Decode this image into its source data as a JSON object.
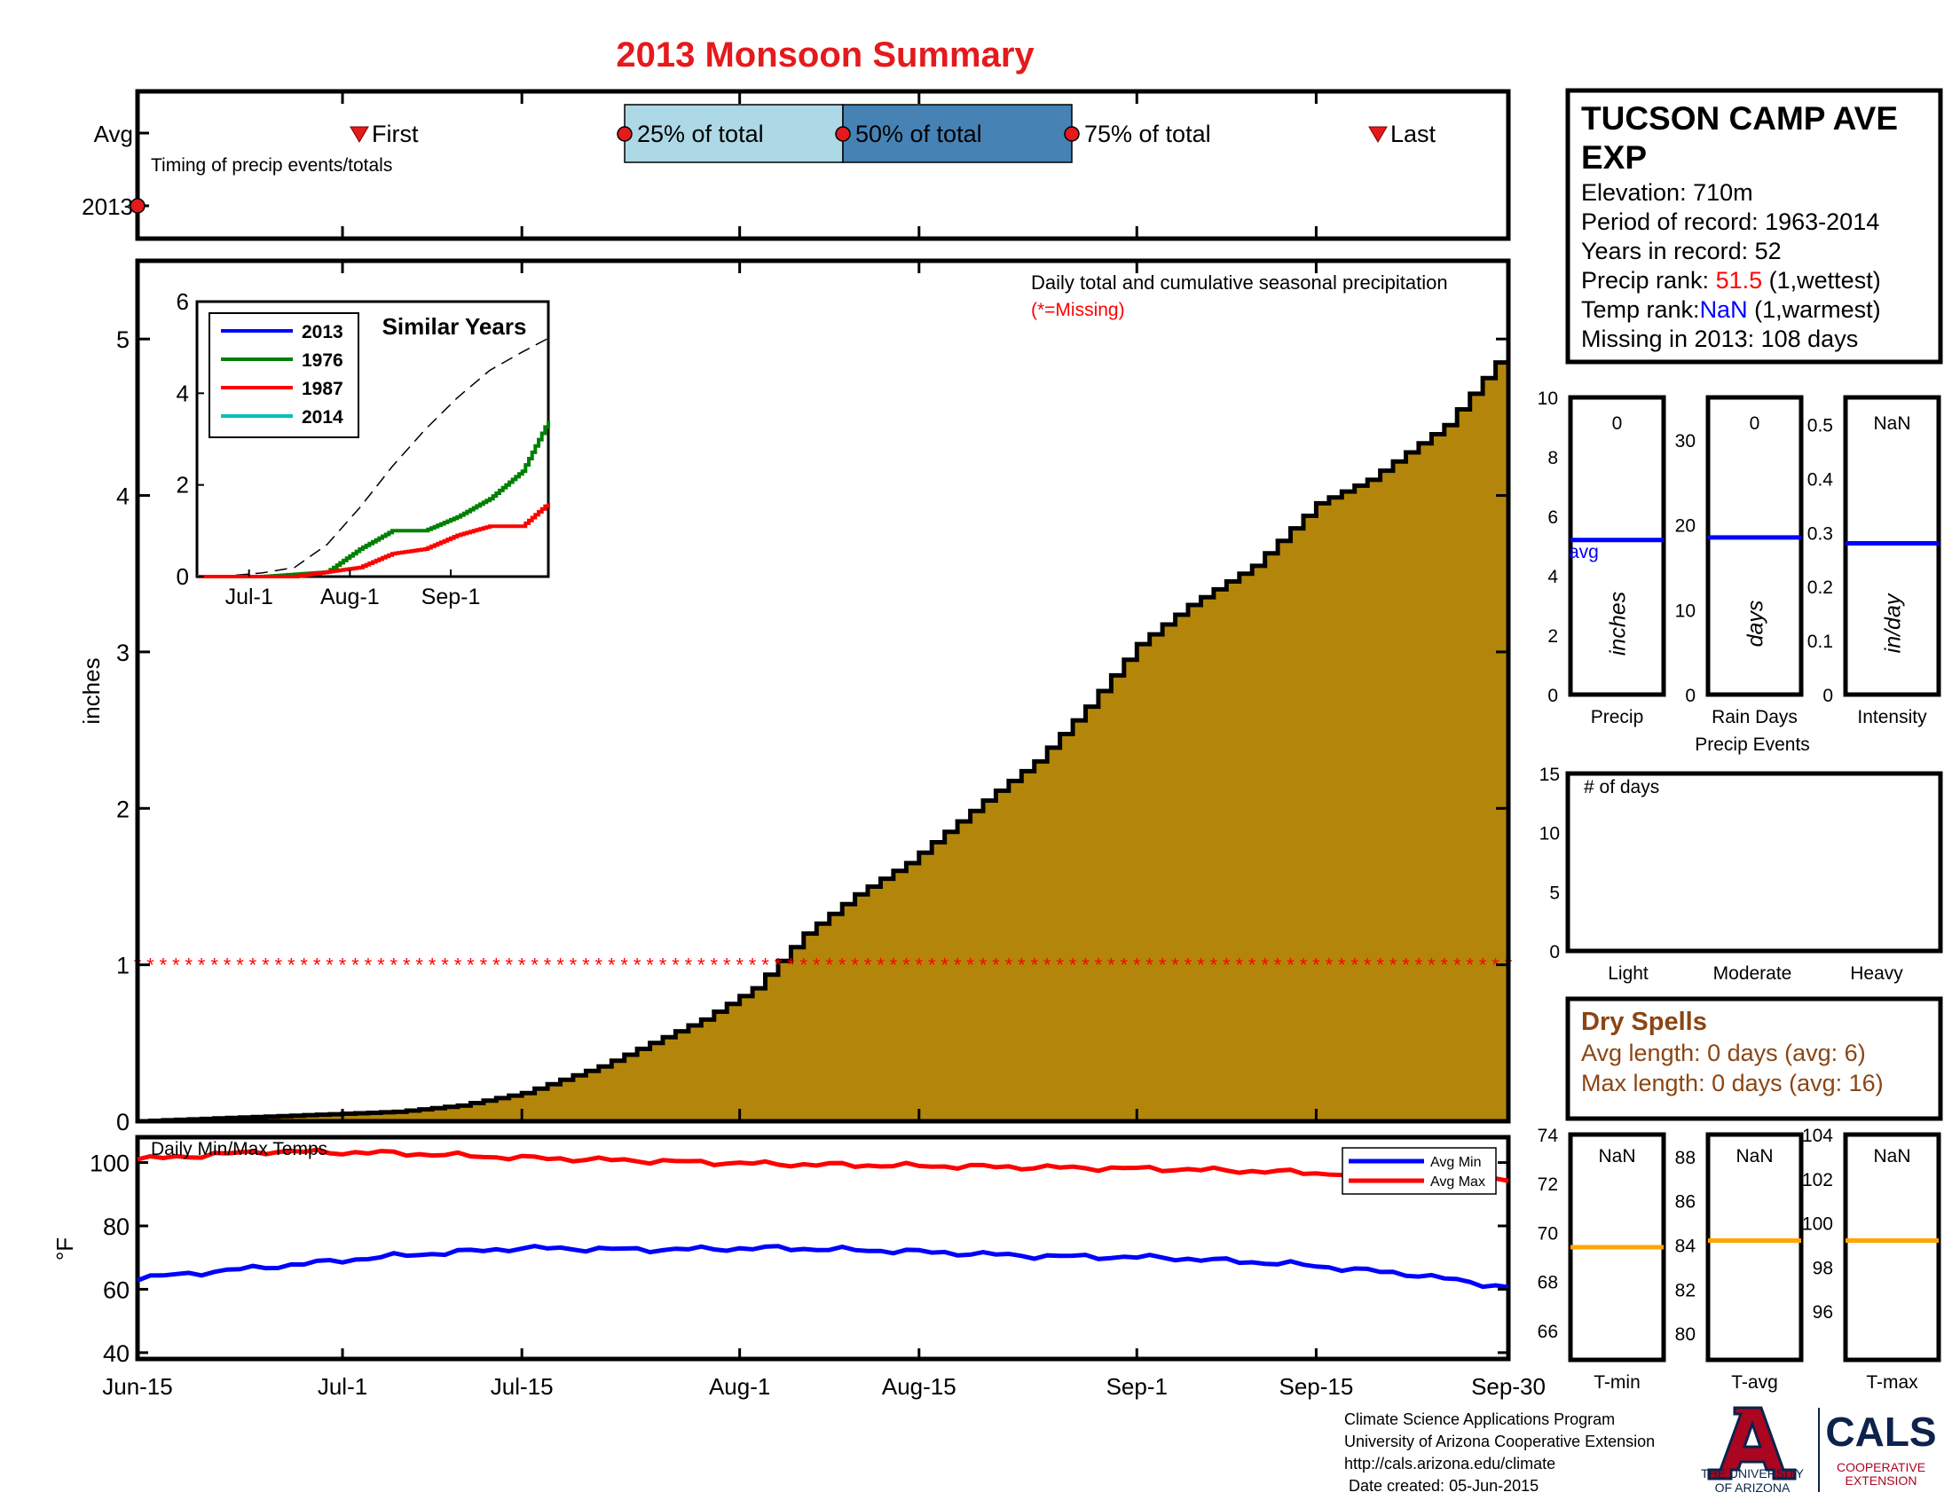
{
  "title": "2013 Monsoon Summary",
  "colors": {
    "title": "#e41a1c",
    "fill": "#b3860b",
    "avg_line": "#0000ff",
    "missing": "#ff0000",
    "temp_ref": "#ffa500",
    "dry_spells": "#8b4513",
    "band_light": "#add8e6",
    "band_dark": "#4682b4",
    "s2013": "#0000ff",
    "s1976": "#008000",
    "s1987": "#ff0000",
    "s2014": "#00bfbf"
  },
  "timing_panel": {
    "rows": [
      "Avg",
      "2013"
    ],
    "subtitle": "Timing of precip events/totals",
    "markers": [
      {
        "label": "First",
        "symbol": "triangle",
        "date": "Jul-2"
      },
      {
        "label": "25% of total",
        "symbol": "circle",
        "date": "Jul-23"
      },
      {
        "label": "50% of total",
        "symbol": "circle",
        "date": "Aug-6"
      },
      {
        "label": "75% of total",
        "symbol": "circle",
        "date": "Aug-20"
      },
      {
        "label": "Last",
        "symbol": "triangle",
        "date": "Sep-22"
      }
    ],
    "row_2013_marker_date": "Jun-15"
  },
  "station": {
    "name": "TUCSON CAMP AVE EXP",
    "elevation": "Elevation: 710m",
    "period": "Period of record: 1963-2014",
    "years": "Years in record: 52",
    "precip_rank_label": "Precip rank:",
    "precip_rank_value": "51.5",
    "precip_rank_note": "(1,wettest)",
    "temp_rank_label": "Temp rank:",
    "temp_rank_value": "NaN",
    "temp_rank_note": "(1,warmest)",
    "missing": "Missing in 2013: 108 days"
  },
  "main_plot": {
    "annotation": "Daily total and cumulative seasonal precipitation",
    "missing_note": "(*=Missing)",
    "ylabel": "inches",
    "ylim": [
      0,
      5.5
    ],
    "yticks": [
      "0",
      "1",
      "2",
      "3",
      "4",
      "5"
    ],
    "missing_marker_level": 1
  },
  "inset": {
    "title": "Similar Years",
    "yticks": [
      "0",
      "2",
      "4",
      "6"
    ],
    "xticks": [
      "Jul-1",
      "Aug-1",
      "Sep-1"
    ],
    "legend": [
      "2013",
      "1976",
      "1987",
      "2014"
    ]
  },
  "temp_panel": {
    "title": "Daily Min/Max Temps",
    "ylabel": "°F",
    "yticks": [
      "40",
      "60",
      "80",
      "100"
    ],
    "legend": [
      "Avg Min",
      "Avg Max"
    ],
    "xticks": [
      "Jun-15",
      "Jul-1",
      "Jul-15",
      "Aug-1",
      "Aug-15",
      "Sep-1",
      "Sep-15",
      "Sep-30"
    ]
  },
  "precip_events": {
    "caption": "Precip Events",
    "panels": [
      {
        "label": "Precip",
        "unit": "inches",
        "value": "0",
        "avg_label": "avg",
        "ticks": [
          "0",
          "2",
          "4",
          "6",
          "8",
          "10"
        ],
        "avg": 5.2,
        "max": 10
      },
      {
        "label": "Rain Days",
        "unit": "days",
        "value": "0",
        "ticks": [
          "0",
          "10",
          "20",
          "30"
        ],
        "avg": 18.5,
        "max": 35
      },
      {
        "label": "Intensity",
        "unit": "in/day",
        "value": "NaN",
        "ticks": [
          "0",
          "0.1",
          "0.2",
          "0.3",
          "0.4",
          "0.5"
        ],
        "avg": 0.28,
        "max": 0.55
      }
    ]
  },
  "days_panel": {
    "label": "# of days",
    "yticks": [
      "0",
      "5",
      "10",
      "15"
    ],
    "categories": [
      "Light",
      "Moderate",
      "Heavy"
    ],
    "values": [
      0,
      0,
      0
    ]
  },
  "dry_spells": {
    "title": "Dry Spells",
    "avg": "Avg length: 0 days (avg: 6)",
    "max": "Max length: 0 days (avg: 16)"
  },
  "temp_boxes": [
    {
      "label": "T-min",
      "value": "NaN",
      "ticks": [
        "66",
        "68",
        "70",
        "72",
        "74"
      ],
      "avg": 69.4,
      "min": 64.8,
      "max": 74
    },
    {
      "label": "T-avg",
      "value": "NaN",
      "ticks": [
        "80",
        "82",
        "84",
        "86",
        "88"
      ],
      "avg": 84.2,
      "min": 78.8,
      "max": 89
    },
    {
      "label": "T-max",
      "value": "NaN",
      "ticks": [
        "96",
        "98",
        "100",
        "102",
        "104"
      ],
      "avg": 99.2,
      "min": 93.8,
      "max": 104
    }
  ],
  "footer": {
    "lines": [
      "Climate Science Applications Program",
      "University of Arizona Cooperative Extension",
      "http://cals.arizona.edu/climate",
      " Date created: 05-Jun-2015"
    ],
    "ua_line1": "THE UNIVERSITY",
    "ua_line2": "OF ARIZONA",
    "cals": "CALS",
    "coop1": "COOPERATIVE",
    "coop2": "EXTENSION"
  },
  "chart_data": [
    {
      "type": "area",
      "title": "Daily total and cumulative seasonal precipitation",
      "ylabel": "inches",
      "ylim": [
        0,
        5.5
      ],
      "x_start": "Jun-15",
      "x_end": "Sep-30",
      "xticks": [
        "Jun-15",
        "Jul-1",
        "Jul-15",
        "Aug-1",
        "Aug-15",
        "Sep-1",
        "Sep-15",
        "Sep-30"
      ],
      "day_offsets": [
        0,
        10,
        20,
        25,
        30,
        36,
        40,
        44,
        48,
        52,
        56,
        60,
        66,
        70,
        74,
        78,
        82,
        87,
        92,
        96,
        102,
        108
      ],
      "values": [
        0,
        0.03,
        0.06,
        0.1,
        0.18,
        0.35,
        0.5,
        0.65,
        0.85,
        1.2,
        1.45,
        1.65,
        2.05,
        2.3,
        2.65,
        3.05,
        3.3,
        3.55,
        3.95,
        4.1,
        4.45,
        5.05
      ]
    },
    {
      "type": "line",
      "title": "Similar Years",
      "xticks": [
        "Jul-1",
        "Aug-1",
        "Sep-1"
      ],
      "ylim": [
        0,
        6
      ],
      "x_day": [
        0,
        10,
        20,
        30,
        40,
        50,
        60,
        70,
        80,
        90,
        100,
        108
      ],
      "series": [
        {
          "name": "2013",
          "values": [
            0,
            0.02,
            0.08,
            0.2,
            0.7,
            1.5,
            2.4,
            3.2,
            3.9,
            4.5,
            4.9,
            5.2
          ]
        },
        {
          "name": "1976",
          "values": [
            0,
            0,
            0,
            0.05,
            0.1,
            0.6,
            1.0,
            1.0,
            1.3,
            1.7,
            2.3,
            3.4
          ]
        },
        {
          "name": "1987",
          "values": [
            0,
            0,
            0,
            0,
            0.1,
            0.2,
            0.5,
            0.6,
            0.9,
            1.1,
            1.1,
            1.6
          ]
        },
        {
          "name": "2014",
          "values": []
        }
      ]
    },
    {
      "type": "line",
      "title": "Daily Min/Max Temps",
      "ylabel": "°F",
      "ylim": [
        38,
        108
      ],
      "x_day": [
        0,
        10,
        20,
        30,
        40,
        50,
        60,
        70,
        80,
        90,
        100,
        108
      ],
      "series": [
        {
          "name": "Avg Max",
          "values": [
            101,
            103.5,
            103,
            101.5,
            100.5,
            99.5,
            99,
            98.5,
            98,
            97,
            95.5,
            94
          ]
        },
        {
          "name": "Avg Min",
          "values": [
            63.5,
            67,
            70.5,
            73,
            72.5,
            73,
            72,
            70.5,
            70,
            68,
            64.5,
            60
          ]
        }
      ]
    }
  ]
}
